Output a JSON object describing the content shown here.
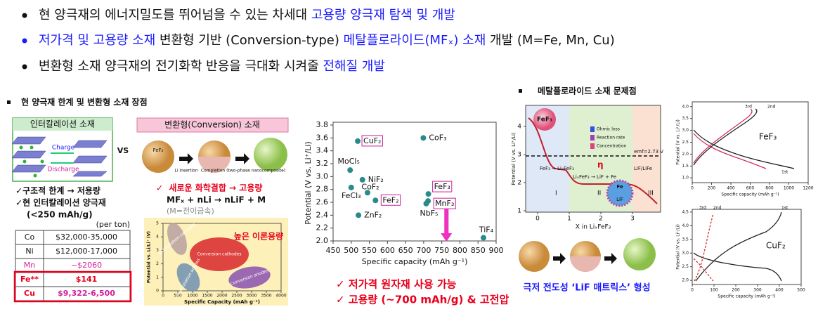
{
  "bullets": [
    [
      "현 양극재의 에너지밀도를 뛰어넘을 수 있는 차세대 ",
      "고용량 양극재 탐색 및 개발"
    ],
    [
      "저가격 및 고용량 소재",
      " 변환형 기반 (Conversion-type) ",
      "메탈플로라이드(MFₓ) 소재",
      " 개발 (M=Fe, Mn, Cu)"
    ],
    [
      "변환형 소재 양극재의 전기화학 반응을 극대화 시켜줄 ",
      "전해질 개발"
    ]
  ],
  "left": {
    "heading": "현 양극재 한계 및 변환형 소재 장점",
    "intercalation": "인터칼레이션 소재",
    "charge": "Charge",
    "discharge": "Discharge",
    "vs": "VS",
    "conversion": "변환형(Conversion) 소재",
    "sphere": [
      "FeF₂",
      "Li insertion",
      "Completion (two-phase nanocomposite)"
    ],
    "limits": [
      "✓구조적 한계 → 저용량",
      "✓현 인터칼레이션 양극재",
      "(<250 mAh/g)"
    ],
    "unit": "(per ton)",
    "table": [
      [
        "Co",
        "$32,000-35,000"
      ],
      [
        "Ni",
        "$12,000-17,000"
      ],
      [
        "Mn",
        "~$2060"
      ],
      [
        "Fe**",
        "$141"
      ],
      [
        "Cu",
        "$9,322-6,500"
      ]
    ],
    "reaction": [
      "✓  새로운 화학결합 → 고용량",
      "MFₓ + nLi → nLiF + M",
      "(M=전이금속)"
    ],
    "map": {
      "title": "높은 이론용량",
      "regions": [
        "Intercalation cathodes",
        "Conversion cathodes",
        "Intercalation anodes",
        "Conversion anodes"
      ],
      "xlabel": "Specific Capacity (mAh g⁻¹)",
      "ylabel": "Potential vs. Li/Li⁺ (V)",
      "xticks": [
        0,
        500,
        1000,
        1500,
        2000,
        2500,
        3000,
        3500,
        4000
      ],
      "yticks": [
        0,
        1,
        2,
        3,
        4,
        5
      ]
    }
  },
  "chart_data": {
    "type": "scatter",
    "xlabel": "Specific capacity (mAh g⁻¹)",
    "ylabel": "Potential (V vs. Li⁺/Li)",
    "color": "#2a8a8a",
    "labels": [
      "CuF₂",
      "CoF₃",
      "MoCl₅",
      "NiF₂",
      "FeCl₃",
      "CoF₂",
      "FeF₂",
      "ZnF₂",
      "FeF₃",
      "MnF₃",
      "NbF₅",
      "TiF₄"
    ],
    "x": [
      518,
      699,
      497,
      531,
      500,
      545,
      567,
      520,
      713,
      712,
      707,
      865
    ],
    "values": [
      3.55,
      3.6,
      3.1,
      2.95,
      2.83,
      2.75,
      2.63,
      2.4,
      2.73,
      2.62,
      2.58,
      2.05
    ],
    "boxed": [
      true,
      false,
      false,
      false,
      false,
      false,
      true,
      false,
      true,
      true,
      false,
      false
    ],
    "xlim": [
      450,
      900
    ],
    "ylim": [
      2.0,
      3.8
    ],
    "xticks": [
      450,
      500,
      550,
      600,
      650,
      700,
      750,
      800,
      850,
      900
    ],
    "yticks": [
      {
        "value": 2.0,
        "label": "2.0"
      },
      2.2,
      2.4,
      2.6,
      2.8,
      {
        "value": 3.0,
        "label": "3.0"
      },
      3.2,
      3.4,
      3.6,
      3.8
    ],
    "notes": [
      "✓ 저가격 원자재 사용 가능",
      "✓ 고용량 (~700 mAh/g) & 고전압"
    ]
  },
  "right": {
    "heading": "메탈플로라이드 소재 문제점",
    "diagram": {
      "material": "FeF₃",
      "legend": [
        "Ohmic loss",
        "Reaction rate",
        "Concentration"
      ],
      "emf": "emf=2.73 V",
      "eta": "η",
      "steps": [
        "FeF₃ → LiₓFeF₃",
        "LiₓFeF₃ → LiF + Fe",
        "LiF/LiFe"
      ],
      "regions": [
        "I",
        "II",
        "III"
      ],
      "particle": [
        "Fe",
        "LiF"
      ],
      "xlabel": "X in LiₓFeF₃",
      "ylabel": "Potential (V vs. Li⁺/Li)",
      "xticks": [
        0,
        1,
        2,
        3
      ],
      "yticks": [
        1,
        2,
        3,
        4
      ]
    },
    "caption": "극저 전도성 ‘LiF 매트릭스’ 형성",
    "fef3": {
      "label": "FeF₃",
      "cycles": [
        "1st",
        "2nd",
        "3rd"
      ],
      "xlabel": "Specific capacity (mAh g⁻¹)",
      "ylabel": "Potential (V vs. Li⁺/Li)",
      "xticks": [
        0,
        200,
        400,
        600,
        800,
        1000,
        1200
      ],
      "yticks": [
        {
          "value": 1.0,
          "label": "1.0"
        },
        1.5,
        {
          "value": 2.0,
          "label": "2.0"
        },
        2.5,
        {
          "value": 3.0,
          "label": "3.0"
        },
        3.5,
        {
          "value": 4.0,
          "label": "4.0"
        }
      ]
    },
    "cuf2": {
      "label": "CuF₂",
      "cycles": [
        "1st",
        "2nd",
        "3rd"
      ],
      "xlabel": "Specific capacity (mAh g⁻¹)",
      "ylabel": "Potential (V vs. Li⁺/Li)",
      "xticks": [
        0,
        100,
        200,
        300,
        400,
        500
      ],
      "yticks": [
        {
          "value": 2.0,
          "label": "2.0"
        },
        2.5,
        {
          "value": 3.0,
          "label": "3.0"
        },
        3.5,
        {
          "value": 4.0,
          "label": "4.0"
        },
        4.5
      ]
    }
  }
}
